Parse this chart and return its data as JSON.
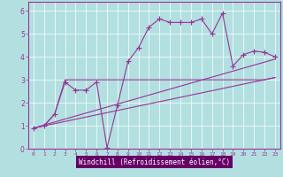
{
  "background_color": "#b2e0e0",
  "line_color": "#993399",
  "xlabel": "Windchill (Refroidissement éolien,°C)",
  "xlim": [
    -0.5,
    23.5
  ],
  "ylim": [
    0,
    6.4
  ],
  "xticks": [
    0,
    1,
    2,
    3,
    4,
    5,
    6,
    7,
    8,
    9,
    10,
    11,
    12,
    13,
    14,
    15,
    16,
    17,
    18,
    19,
    20,
    21,
    22,
    23
  ],
  "yticks": [
    0,
    1,
    2,
    3,
    4,
    5,
    6
  ],
  "series1_x": [
    0,
    1,
    2,
    3,
    4,
    5,
    6,
    7,
    8,
    9,
    10,
    11,
    12,
    13,
    14,
    15,
    16,
    17,
    18,
    19,
    20,
    21,
    22,
    23
  ],
  "series1_y": [
    0.9,
    1.0,
    1.5,
    2.9,
    2.55,
    2.55,
    2.9,
    0.05,
    1.9,
    3.8,
    4.4,
    5.3,
    5.65,
    5.5,
    5.5,
    5.5,
    5.65,
    5.0,
    5.9,
    3.6,
    4.1,
    4.25,
    4.2,
    4.0
  ],
  "series2_x": [
    0,
    1,
    2,
    3,
    4,
    5,
    6,
    7,
    8,
    9,
    10,
    11,
    12,
    13,
    14,
    15,
    16,
    17,
    18,
    19,
    20,
    21,
    22,
    23
  ],
  "series2_y": [
    0.9,
    1.0,
    1.5,
    3.0,
    3.0,
    3.0,
    3.0,
    3.0,
    3.0,
    3.0,
    3.0,
    3.0,
    3.0,
    3.0,
    3.0,
    3.0,
    3.0,
    3.0,
    3.0,
    3.0,
    3.0,
    3.0,
    3.0,
    3.1
  ],
  "series3_x": [
    0,
    23
  ],
  "series3_y": [
    0.9,
    3.1
  ],
  "series4_x": [
    0,
    23
  ],
  "series4_y": [
    0.9,
    3.9
  ],
  "xlabel_bg": "#660066",
  "xlabel_fg": "#ffffff"
}
